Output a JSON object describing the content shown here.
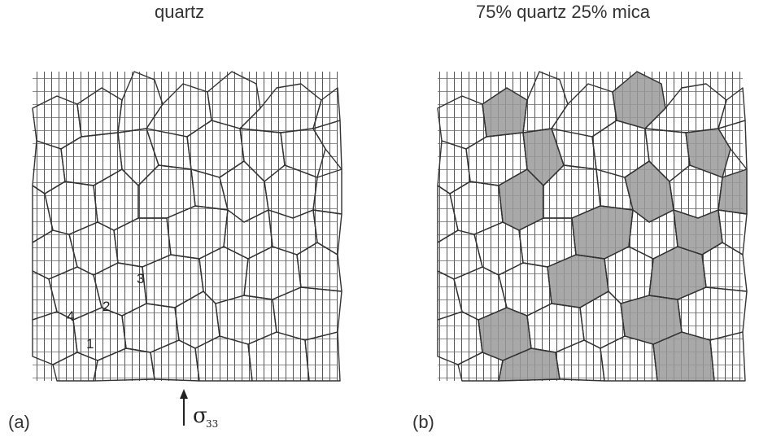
{
  "panel_a": {
    "title": "quartz",
    "label": "(a)",
    "grain_numbers": [
      "1",
      "2",
      "3",
      "4"
    ]
  },
  "panel_b": {
    "title": "75% quartz  25% mica",
    "label": "(b)"
  },
  "stress": {
    "symbol": "σ",
    "subscript": "33"
  },
  "colors": {
    "line": "#333333",
    "grid": "#555555",
    "mica_fill": "#9a9a9a",
    "quartz_fill": "#ffffff"
  }
}
